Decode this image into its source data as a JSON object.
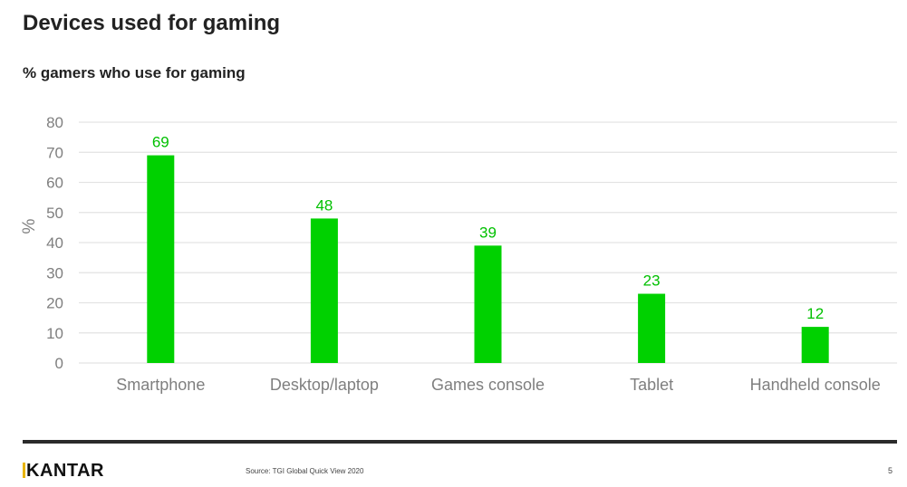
{
  "title": "Devices used for gaming",
  "subtitle": "% gamers who use for gaming",
  "footer": {
    "logo": "KANTAR",
    "source": "Source: TGI Global Quick View 2020",
    "page_number": "5"
  },
  "colors": {
    "bar": "#00d100",
    "label": "#00c000",
    "grid": "#e3e3e3",
    "axis_text": "#7f7f7f"
  },
  "chart_data": {
    "type": "bar",
    "title": "Devices used for gaming",
    "subtitle": "% gamers who use for gaming",
    "xlabel": "",
    "ylabel": "%",
    "ylim": [
      0,
      80
    ],
    "yticks": [
      0,
      10,
      20,
      30,
      40,
      50,
      60,
      70,
      80
    ],
    "grid": true,
    "categories": [
      "Smartphone",
      "Desktop/laptop",
      "Games console",
      "Tablet",
      "Handheld console"
    ],
    "values": [
      69,
      48,
      39,
      23,
      12
    ]
  }
}
